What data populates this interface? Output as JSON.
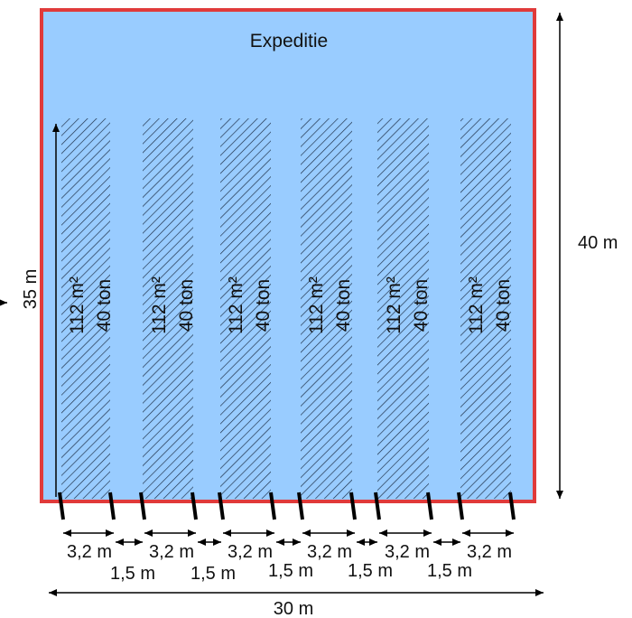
{
  "area": {
    "title": "Expeditie",
    "fill_color": "#99ccff",
    "border_color": "#e03a3a"
  },
  "bays": [
    {
      "area_label": "112 m²",
      "weight_label": "40 ton"
    },
    {
      "area_label": "112 m²",
      "weight_label": "40 ton"
    },
    {
      "area_label": "112 m²",
      "weight_label": "40 ton"
    },
    {
      "area_label": "112 m²",
      "weight_label": "40 ton"
    },
    {
      "area_label": "112 m²",
      "weight_label": "40 ton"
    },
    {
      "area_label": "112 m²",
      "weight_label": "40 ton"
    }
  ],
  "dimensions": {
    "total_height": "40 m",
    "bay_length": "35 m",
    "bay_width": "3,2 m",
    "gap_width": "1,5 m",
    "total_width": "30 m"
  }
}
